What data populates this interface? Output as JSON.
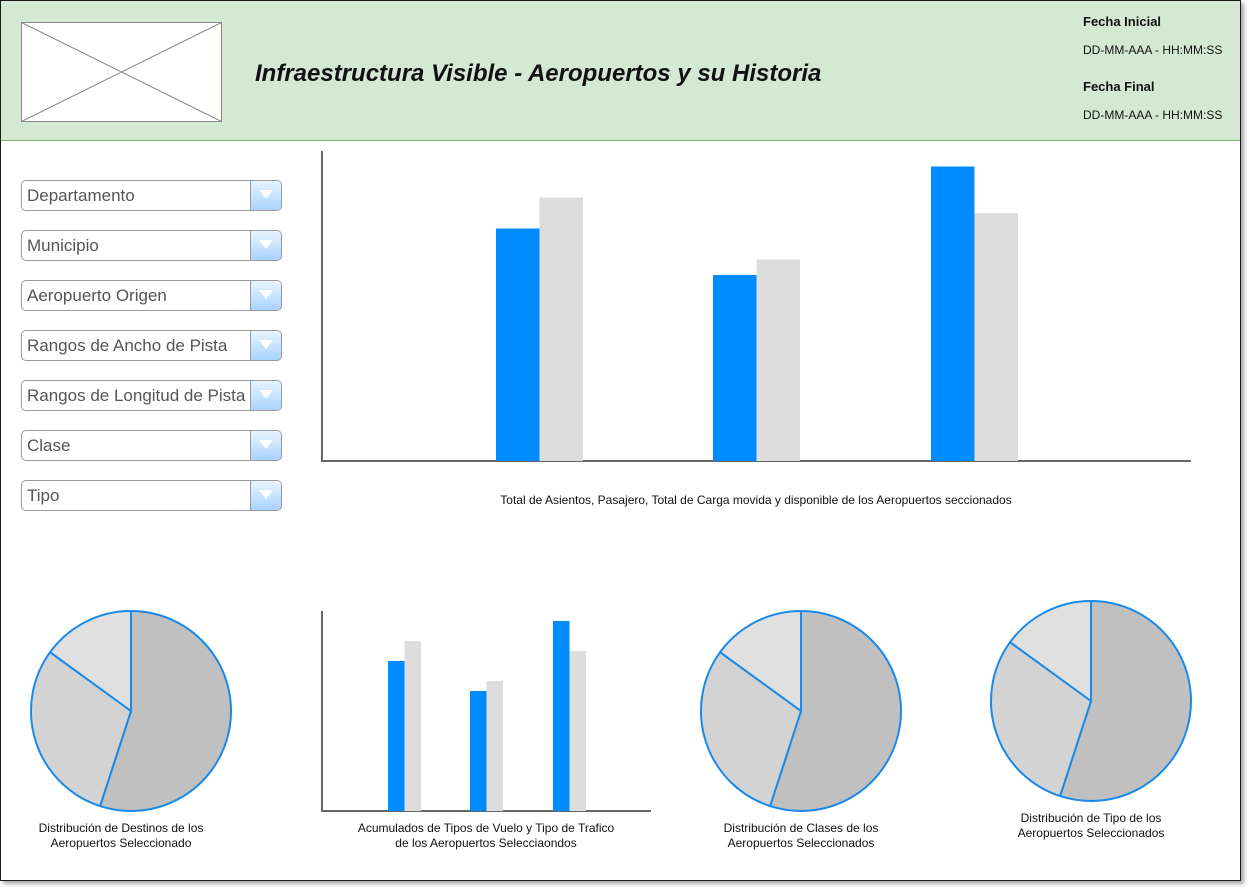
{
  "header": {
    "title": "Infraestructura Visible - Aeropuertos y su Historia",
    "fecha_inicial_label": "Fecha Inicial",
    "fecha_inicial_value": "DD-MM-AAA - HH:MM:SS",
    "fecha_final_label": "Fecha Final",
    "fecha_final_value": "DD-MM-AAA - HH:MM:SS",
    "logo_icon": "image-placeholder-icon"
  },
  "filters": [
    {
      "label": "Departamento",
      "icon": "chevron-down-icon"
    },
    {
      "label": "Municipio",
      "icon": "chevron-down-icon"
    },
    {
      "label": "Aeropuerto Origen",
      "icon": "chevron-down-icon"
    },
    {
      "label": "Rangos de Ancho de Pista",
      "icon": "chevron-down-icon"
    },
    {
      "label": "Rangos de Longitud de Pista",
      "icon": "chevron-down-icon"
    },
    {
      "label": "Clase",
      "icon": "chevron-down-icon"
    },
    {
      "label": "Tipo",
      "icon": "chevron-down-icon"
    }
  ],
  "colors": {
    "header_bg": "#d5e8d4",
    "bar_primary": "#008cff",
    "bar_secondary": "#dddddd",
    "pie_large": "#c0c0c0",
    "pie_medium": "#d3d3d3",
    "pie_small": "#e0e0e0",
    "pie_stroke": "#1a8ae8",
    "axis": "#666666"
  },
  "chart_data": [
    {
      "type": "bar",
      "title": "Total de Asientos, Pasajero, Total de Carga movida y disponible de los Aeropuertos seccionados",
      "series": [
        {
          "values": [
            75,
            60,
            95
          ]
        },
        {
          "values": [
            85,
            65,
            80
          ]
        }
      ]
    },
    {
      "type": "pie",
      "title": "Distribución de Destinos de los Aeropuertos Seleccionado",
      "values": [
        55,
        30,
        15
      ]
    },
    {
      "type": "bar",
      "title": "Acumulados de Tipos de Vuelo y Tipo de Trafico de los Aeropuertos Selecciaondos",
      "series": [
        {
          "values": [
            75,
            60,
            95
          ]
        },
        {
          "values": [
            85,
            65,
            80
          ]
        }
      ]
    },
    {
      "type": "pie",
      "title": "Distribución de Clases de los Aeropuertos Seleccionados",
      "values": [
        55,
        30,
        15
      ]
    },
    {
      "type": "pie",
      "title": "Distribución de Tipo de los Aeropuertos Seleccionados",
      "values": [
        55,
        30,
        15
      ]
    }
  ]
}
